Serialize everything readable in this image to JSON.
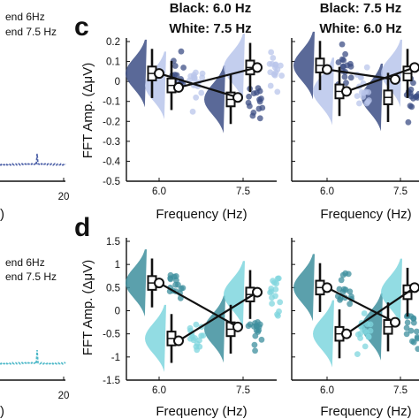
{
  "column_headers": [
    {
      "black": "Black: 6.0 Hz",
      "white": "White: 7.5 Hz"
    },
    {
      "black": "Black: 7.5 Hz",
      "white": "White: 6.0 Hz"
    }
  ],
  "panel_letters": {
    "c": "c",
    "d": "d"
  },
  "left_strip": {
    "top_legend": [
      "end 6Hz",
      "end 7.5 Hz"
    ],
    "bottom_legend": [
      "end 6Hz",
      "end 7.5 Hz"
    ],
    "tick_label": "20",
    "axis_fragment": ")"
  },
  "colors": {
    "c_dark": "#3d4f86",
    "c_light": "#b9c5eb",
    "d_dark": "#3e8f9e",
    "d_light": "#7fd6de",
    "spectrum_c": "#4b5fa7",
    "spectrum_d": "#4cb8c8",
    "axis": "#111111"
  },
  "chart_data": [
    {
      "type": "raincloud",
      "panel": "c",
      "ylabel": "FFT Amp. (ΔμV)",
      "xlabel": "Frequency (Hz)",
      "ylim": [
        -0.5,
        0.2
      ],
      "yticks": [
        "0.2",
        "0.1",
        "0",
        "-0.1",
        "-0.2",
        "-0.3",
        "-0.4",
        "-0.5"
      ],
      "categories": [
        "6.0",
        "7.5"
      ],
      "subplots": [
        {
          "median_6": 0.04,
          "median_7": -0.09,
          "mean_6": 0.04,
          "mean_7": -0.08,
          "median_w6": -0.02,
          "median_w7": 0.07,
          "mean_w6": -0.03,
          "mean_w7": 0.07
        },
        {
          "median_6": 0.08,
          "median_7": -0.08,
          "mean_6": 0.06,
          "mean_7": 0.01,
          "median_w6": -0.05,
          "median_w7": 0.04,
          "mean_w6": -0.05,
          "mean_w7": 0.07
        }
      ]
    },
    {
      "type": "raincloud",
      "panel": "d",
      "ylabel": "FFT Amp. (ΔμV)",
      "xlabel": "Frequency (Hz)",
      "ylim": [
        -1.5,
        1.5
      ],
      "yticks": [
        "1.5",
        "1",
        "0.5",
        "0",
        "-0.5",
        "-1",
        "-1.5"
      ],
      "categories": [
        "6.0",
        "7.5"
      ],
      "subplots": [
        {
          "median_6": 0.6,
          "median_7": -0.4,
          "mean_6": 0.6,
          "mean_7": -0.35,
          "median_w6": -0.6,
          "median_w7": 0.35,
          "mean_w6": -0.65,
          "mean_w7": 0.4
        },
        {
          "median_6": 0.5,
          "median_7": -0.35,
          "mean_6": 0.5,
          "mean_7": -0.25,
          "median_w6": -0.5,
          "median_w7": 0.4,
          "mean_w6": -0.5,
          "mean_w7": 0.5
        }
      ]
    }
  ]
}
